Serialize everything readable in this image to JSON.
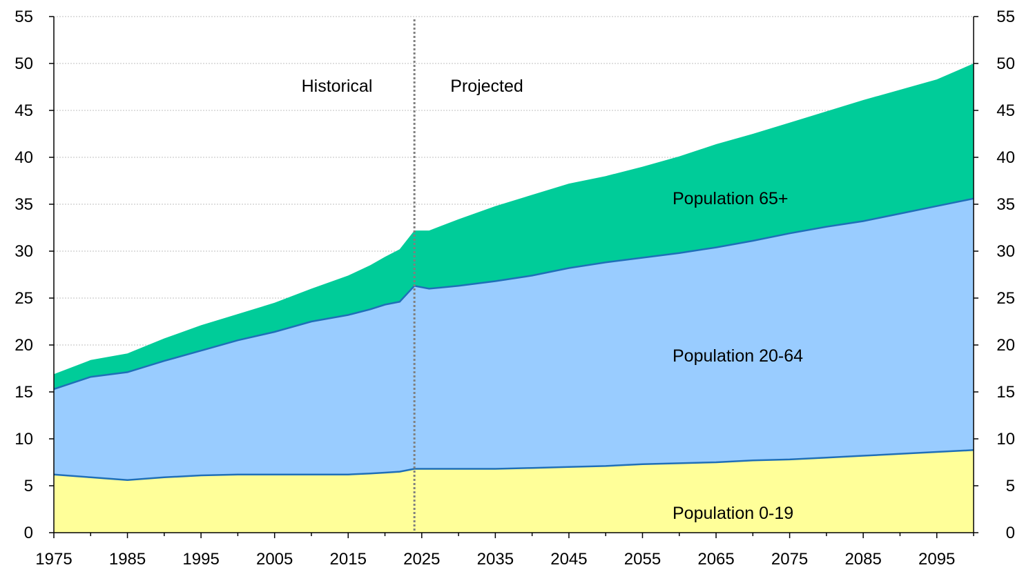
{
  "chart_data": {
    "type": "area",
    "stacked": true,
    "title": "",
    "xlabel": "",
    "ylabel": "",
    "xlim": [
      1975,
      2100
    ],
    "ylim": [
      0,
      55
    ],
    "grid": true,
    "divider_year": 2024,
    "x_ticks": [
      1975,
      1985,
      1995,
      2005,
      2015,
      2025,
      2035,
      2045,
      2055,
      2065,
      2075,
      2085,
      2095
    ],
    "y_ticks": [
      0,
      5,
      10,
      15,
      20,
      25,
      30,
      35,
      40,
      45,
      50,
      55
    ],
    "annotations": {
      "historical": "Historical",
      "projected": "Projected",
      "label_65": "Population 65+",
      "label_20_64": "Population 20-64",
      "label_0_19": "Population 0-19"
    },
    "colors": {
      "pop_0_19": "#FFFF99",
      "pop_20_64": "#99CCFF",
      "pop_65": "#00CC99",
      "line": "#1F6FB8",
      "divider": "#7F7F7F",
      "grid": "#BFBFBF",
      "axis": "#000000"
    },
    "series_keys": [
      "pop_0_19",
      "pop_20_64",
      "pop_65"
    ],
    "x": [
      1975,
      1980,
      1985,
      1990,
      1995,
      2000,
      2005,
      2010,
      2015,
      2018,
      2020,
      2022,
      2024,
      2026,
      2030,
      2035,
      2040,
      2045,
      2050,
      2055,
      2060,
      2065,
      2070,
      2075,
      2080,
      2085,
      2090,
      2095,
      2100
    ],
    "series": [
      {
        "key": "pop_0_19",
        "name": "Population 0-19",
        "values": [
          6.2,
          5.9,
          5.6,
          5.9,
          6.1,
          6.2,
          6.2,
          6.2,
          6.2,
          6.3,
          6.4,
          6.5,
          6.8,
          6.8,
          6.8,
          6.8,
          6.9,
          7.0,
          7.1,
          7.3,
          7.4,
          7.5,
          7.7,
          7.8,
          8.0,
          8.2,
          8.4,
          8.6,
          8.8
        ]
      },
      {
        "key": "pop_20_64",
        "name": "Population 20-64",
        "values": [
          9.1,
          10.7,
          11.5,
          12.4,
          13.3,
          14.3,
          15.2,
          16.3,
          17.0,
          17.5,
          17.9,
          18.1,
          19.5,
          19.2,
          19.5,
          20.0,
          20.5,
          21.2,
          21.7,
          22.0,
          22.4,
          22.9,
          23.4,
          24.1,
          24.6,
          25.0,
          25.6,
          26.2,
          26.8
        ]
      },
      {
        "key": "pop_65",
        "name": "Population 65+",
        "values": [
          1.6,
          1.8,
          2.0,
          2.4,
          2.7,
          2.8,
          3.1,
          3.5,
          4.2,
          4.7,
          5.1,
          5.6,
          5.9,
          6.2,
          7.1,
          8.0,
          8.6,
          9.0,
          9.2,
          9.7,
          10.3,
          11.0,
          11.4,
          11.8,
          12.3,
          12.9,
          13.2,
          13.5,
          14.4
        ]
      }
    ]
  }
}
